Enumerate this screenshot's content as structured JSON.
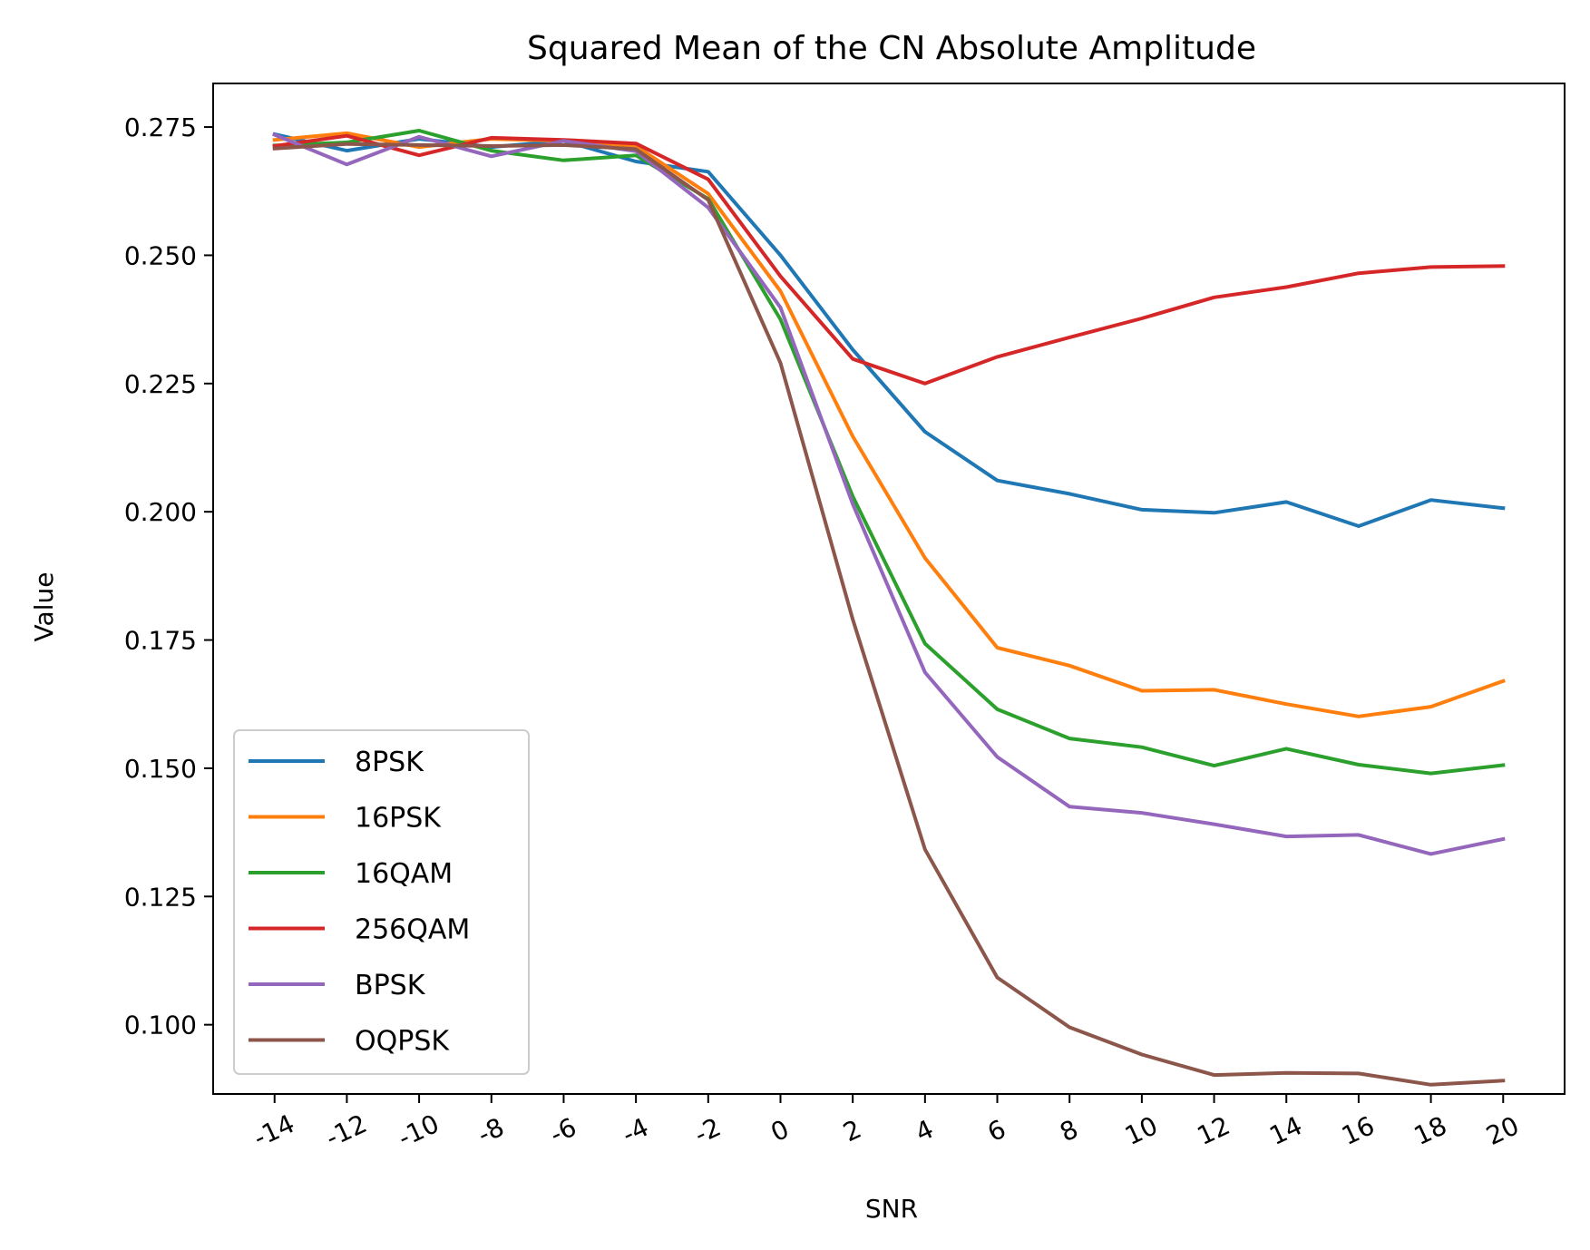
{
  "chart_data": {
    "type": "line",
    "title": "Squared Mean of the CN Absolute Amplitude",
    "xlabel": "SNR",
    "ylabel": "Value",
    "x": [
      -14,
      -12,
      -10,
      -8,
      -6,
      -4,
      -2,
      0,
      2,
      4,
      6,
      8,
      10,
      12,
      14,
      16,
      18,
      20
    ],
    "x_tick_labels": [
      "-14",
      "-12",
      "-10",
      "-8",
      "-6",
      "-4",
      "-2",
      "0",
      "2",
      "4",
      "6",
      "8",
      "10",
      "12",
      "14",
      "16",
      "18",
      "20"
    ],
    "ylim": [
      0.0865,
      0.2835
    ],
    "y_ticks": [
      0.1,
      0.125,
      0.15,
      0.175,
      0.2,
      0.225,
      0.25,
      0.275
    ],
    "y_tick_labels": [
      "0.100",
      "0.125",
      "0.150",
      "0.175",
      "0.200",
      "0.225",
      "0.250",
      "0.275"
    ],
    "grid": false,
    "legend_position": "bottom-left",
    "series": [
      {
        "name": "8PSK",
        "color": "#1f77b4",
        "values": [
          0.2736,
          0.2704,
          0.2727,
          0.2711,
          0.2723,
          0.2683,
          0.2663,
          0.25,
          0.2316,
          0.2156,
          0.2061,
          0.2035,
          0.2004,
          0.1998,
          0.2019,
          0.1972,
          0.2023,
          0.2007
        ]
      },
      {
        "name": "16PSK",
        "color": "#ff7f0e",
        "values": [
          0.2725,
          0.2738,
          0.2711,
          0.2727,
          0.2723,
          0.2713,
          0.262,
          0.243,
          0.2147,
          0.191,
          0.1735,
          0.17,
          0.1651,
          0.1653,
          0.1625,
          0.1601,
          0.162,
          0.167
        ]
      },
      {
        "name": "16QAM",
        "color": "#2ca02c",
        "values": [
          0.2714,
          0.272,
          0.2743,
          0.2704,
          0.2685,
          0.2695,
          0.261,
          0.2375,
          0.203,
          0.1743,
          0.1615,
          0.1558,
          0.1541,
          0.1505,
          0.1538,
          0.1507,
          0.149,
          0.1506
        ]
      },
      {
        "name": "256QAM",
        "color": "#d62728",
        "values": [
          0.2713,
          0.2733,
          0.2695,
          0.2729,
          0.2725,
          0.2718,
          0.2648,
          0.2459,
          0.2298,
          0.225,
          0.2302,
          0.234,
          0.2377,
          0.2418,
          0.2438,
          0.2465,
          0.2477,
          0.2479
        ]
      },
      {
        "name": "BPSK",
        "color": "#9467bd",
        "values": [
          0.2735,
          0.2677,
          0.2731,
          0.2693,
          0.2723,
          0.2703,
          0.2593,
          0.2398,
          0.2015,
          0.1687,
          0.1522,
          0.1425,
          0.1413,
          0.1391,
          0.1367,
          0.137,
          0.1333,
          0.1362
        ]
      },
      {
        "name": "OQPSK",
        "color": "#8c564b",
        "values": [
          0.2708,
          0.2717,
          0.2715,
          0.2713,
          0.2715,
          0.2707,
          0.2608,
          0.229,
          0.179,
          0.1342,
          0.1092,
          0.0995,
          0.0942,
          0.0902,
          0.0906,
          0.0905,
          0.0883,
          0.0891
        ]
      }
    ]
  }
}
